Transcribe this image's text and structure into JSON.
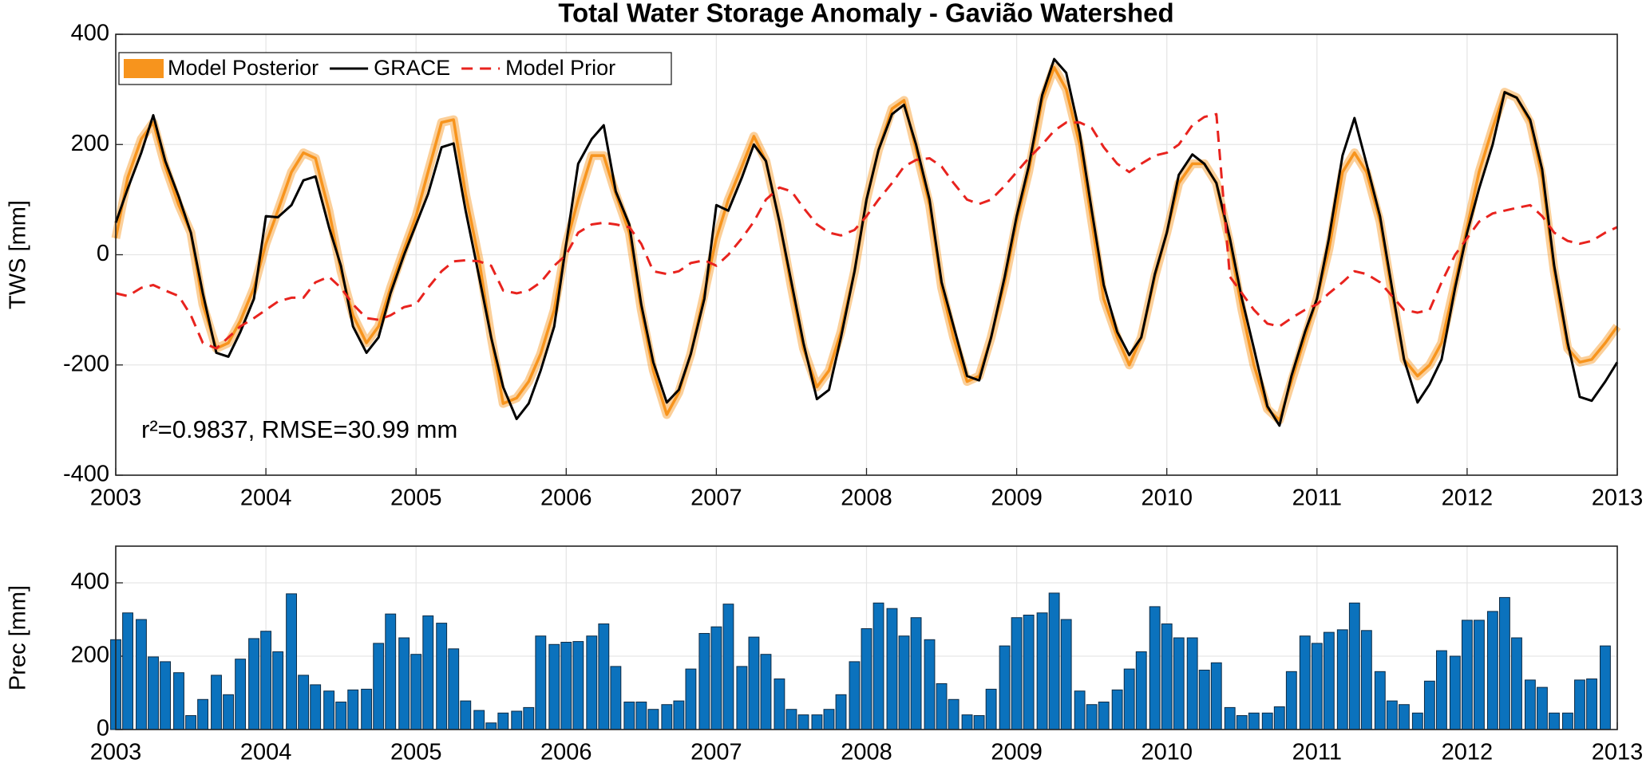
{
  "chart_data": [
    {
      "type": "line",
      "title": "Total Water Storage Anomaly - Gavião Watershed",
      "ylabel": "TWS [mm]",
      "annotation": "r²=0.9837, RMSE=30.99 mm",
      "x": [
        2003,
        2003.08,
        2003.17,
        2003.25,
        2003.33,
        2003.42,
        2003.5,
        2003.58,
        2003.67,
        2003.75,
        2003.83,
        2003.92,
        2004,
        2004.08,
        2004.17,
        2004.25,
        2004.33,
        2004.42,
        2004.5,
        2004.58,
        2004.67,
        2004.75,
        2004.83,
        2004.92,
        2005,
        2005.08,
        2005.17,
        2005.25,
        2005.33,
        2005.42,
        2005.5,
        2005.58,
        2005.67,
        2005.75,
        2005.83,
        2005.92,
        2006,
        2006.08,
        2006.17,
        2006.25,
        2006.33,
        2006.42,
        2006.5,
        2006.58,
        2006.67,
        2006.75,
        2006.83,
        2006.92,
        2007,
        2007.08,
        2007.17,
        2007.25,
        2007.33,
        2007.42,
        2007.5,
        2007.58,
        2007.67,
        2007.75,
        2007.83,
        2007.92,
        2008,
        2008.08,
        2008.17,
        2008.25,
        2008.33,
        2008.42,
        2008.5,
        2008.58,
        2008.67,
        2008.75,
        2008.83,
        2008.92,
        2009,
        2009.08,
        2009.17,
        2009.25,
        2009.33,
        2009.42,
        2009.5,
        2009.58,
        2009.67,
        2009.75,
        2009.83,
        2009.92,
        2010,
        2010.08,
        2010.17,
        2010.25,
        2010.33,
        2010.42,
        2010.5,
        2010.58,
        2010.67,
        2010.75,
        2010.83,
        2010.92,
        2011,
        2011.08,
        2011.17,
        2011.25,
        2011.33,
        2011.42,
        2011.5,
        2011.58,
        2011.67,
        2011.75,
        2011.83,
        2011.92,
        2012,
        2012.08,
        2012.17,
        2012.25,
        2012.33,
        2012.42,
        2012.5,
        2012.58,
        2012.67,
        2012.75,
        2012.83,
        2012.92,
        2013
      ],
      "series": [
        {
          "name": "Model Posterior",
          "color": "#f7941d",
          "style": "band",
          "values": [
            30,
            140,
            210,
            240,
            160,
            90,
            40,
            -90,
            -170,
            -160,
            -120,
            -60,
            20,
            80,
            150,
            185,
            175,
            80,
            -30,
            -110,
            -160,
            -130,
            -60,
            10,
            70,
            150,
            240,
            245,
            110,
            -10,
            -150,
            -270,
            -260,
            -230,
            -180,
            -100,
            20,
            100,
            180,
            180,
            110,
            40,
            -100,
            -210,
            -290,
            -250,
            -180,
            -70,
            30,
            100,
            160,
            215,
            170,
            60,
            -60,
            -170,
            -240,
            -210,
            -140,
            -30,
            100,
            190,
            265,
            280,
            190,
            90,
            -60,
            -150,
            -230,
            -220,
            -150,
            -50,
            60,
            150,
            280,
            340,
            300,
            200,
            60,
            -80,
            -150,
            -200,
            -150,
            -40,
            40,
            130,
            165,
            165,
            130,
            20,
            -100,
            -200,
            -280,
            -300,
            -230,
            -150,
            -80,
            10,
            150,
            185,
            150,
            60,
            -70,
            -190,
            -220,
            -200,
            -160,
            -50,
            50,
            150,
            230,
            295,
            285,
            240,
            140,
            -30,
            -170,
            -195,
            -190,
            -160,
            -130
          ]
        },
        {
          "name": "GRACE",
          "color": "#000000",
          "style": "solid",
          "values": [
            58,
            120,
            185,
            253,
            170,
            105,
            40,
            -70,
            -178,
            -185,
            -140,
            -80,
            70,
            68,
            90,
            135,
            142,
            50,
            -20,
            -130,
            -178,
            -150,
            -70,
            0,
            55,
            110,
            195,
            202,
            80,
            -40,
            -150,
            -240,
            -298,
            -270,
            -210,
            -130,
            20,
            165,
            210,
            235,
            115,
            55,
            -90,
            -195,
            -268,
            -245,
            -180,
            -80,
            90,
            80,
            140,
            200,
            170,
            60,
            -50,
            -160,
            -262,
            -245,
            -150,
            -30,
            100,
            190,
            255,
            272,
            200,
            100,
            -50,
            -130,
            -220,
            -228,
            -150,
            -40,
            70,
            160,
            290,
            355,
            330,
            220,
            80,
            -55,
            -140,
            -182,
            -150,
            -35,
            40,
            145,
            182,
            165,
            130,
            30,
            -80,
            -170,
            -275,
            -310,
            -220,
            -140,
            -80,
            30,
            180,
            248,
            165,
            70,
            -60,
            -190,
            -268,
            -235,
            -190,
            -60,
            40,
            120,
            200,
            295,
            285,
            245,
            155,
            -20,
            -160,
            -258,
            -265,
            -230,
            -195
          ]
        },
        {
          "name": "Model Prior",
          "color": "#e8231e",
          "style": "dashed",
          "values": [
            -70,
            -75,
            -60,
            -55,
            -65,
            -75,
            -110,
            -160,
            -170,
            -150,
            -130,
            -115,
            -100,
            -85,
            -78,
            -78,
            -50,
            -40,
            -60,
            -90,
            -115,
            -118,
            -110,
            -95,
            -90,
            -60,
            -30,
            -12,
            -10,
            -12,
            -20,
            -65,
            -70,
            -65,
            -50,
            -20,
            0,
            40,
            55,
            58,
            55,
            50,
            20,
            -30,
            -35,
            -30,
            -15,
            -10,
            -20,
            0,
            30,
            60,
            100,
            122,
            115,
            85,
            55,
            40,
            35,
            45,
            70,
            100,
            130,
            160,
            172,
            175,
            160,
            130,
            100,
            92,
            100,
            125,
            150,
            175,
            200,
            225,
            240,
            240,
            230,
            195,
            165,
            150,
            165,
            180,
            185,
            200,
            235,
            250,
            255,
            -40,
            -70,
            -100,
            -125,
            -130,
            -115,
            -100,
            -90,
            -70,
            -50,
            -30,
            -35,
            -50,
            -75,
            -100,
            -105,
            -100,
            -50,
            0,
            30,
            60,
            75,
            80,
            85,
            90,
            70,
            40,
            25,
            20,
            25,
            40,
            50
          ]
        }
      ],
      "xlim": [
        2003,
        2013
      ],
      "xticks": [
        2003,
        2004,
        2005,
        2006,
        2007,
        2008,
        2009,
        2010,
        2011,
        2012,
        2013
      ],
      "ylim": [
        -400,
        400
      ],
      "yticks": [
        400,
        200,
        0,
        -200,
        -400
      ],
      "grid": true,
      "legend": "upper left"
    },
    {
      "type": "bar",
      "ylabel": "Prec [mm]",
      "color": "#0b72bd",
      "x": [
        2003,
        2003.08,
        2003.17,
        2003.25,
        2003.33,
        2003.42,
        2003.5,
        2003.58,
        2003.67,
        2003.75,
        2003.83,
        2003.92,
        2004,
        2004.08,
        2004.17,
        2004.25,
        2004.33,
        2004.42,
        2004.5,
        2004.58,
        2004.67,
        2004.75,
        2004.83,
        2004.92,
        2005,
        2005.08,
        2005.17,
        2005.25,
        2005.33,
        2005.42,
        2005.5,
        2005.58,
        2005.67,
        2005.75,
        2005.83,
        2005.92,
        2006,
        2006.08,
        2006.17,
        2006.25,
        2006.33,
        2006.42,
        2006.5,
        2006.58,
        2006.67,
        2006.75,
        2006.83,
        2006.92,
        2007,
        2007.08,
        2007.17,
        2007.25,
        2007.33,
        2007.42,
        2007.5,
        2007.58,
        2007.67,
        2007.75,
        2007.83,
        2007.92,
        2008,
        2008.08,
        2008.17,
        2008.25,
        2008.33,
        2008.42,
        2008.5,
        2008.58,
        2008.67,
        2008.75,
        2008.83,
        2008.92,
        2009,
        2009.08,
        2009.17,
        2009.25,
        2009.33,
        2009.42,
        2009.5,
        2009.58,
        2009.67,
        2009.75,
        2009.83,
        2009.92,
        2010,
        2010.08,
        2010.17,
        2010.25,
        2010.33,
        2010.42,
        2010.5,
        2010.58,
        2010.67,
        2010.75,
        2010.83,
        2010.92,
        2011,
        2011.08,
        2011.17,
        2011.25,
        2011.33,
        2011.42,
        2011.5,
        2011.58,
        2011.67,
        2011.75,
        2011.83,
        2011.92,
        2012,
        2012.08,
        2012.17,
        2012.25,
        2012.33,
        2012.42,
        2012.5,
        2012.58,
        2012.67,
        2012.75,
        2012.83,
        2012.92
      ],
      "values": [
        245,
        318,
        300,
        198,
        185,
        155,
        38,
        82,
        148,
        95,
        192,
        248,
        268,
        212,
        370,
        148,
        122,
        105,
        75,
        108,
        110,
        235,
        315,
        250,
        205,
        310,
        290,
        220,
        78,
        52,
        18,
        45,
        50,
        60,
        255,
        232,
        238,
        240,
        255,
        288,
        172,
        75,
        75,
        55,
        68,
        78,
        165,
        262,
        280,
        342,
        172,
        252,
        205,
        138,
        55,
        40,
        40,
        55,
        95,
        185,
        275,
        345,
        330,
        255,
        305,
        245,
        125,
        82,
        40,
        38,
        110,
        228,
        305,
        312,
        318,
        372,
        300,
        105,
        68,
        75,
        108,
        165,
        212,
        335,
        288,
        250,
        250,
        162,
        182,
        60,
        38,
        45,
        45,
        62,
        158,
        255,
        235,
        265,
        272,
        345,
        270,
        158,
        78,
        68,
        45,
        132,
        215,
        200,
        298,
        298,
        322,
        360,
        250,
        135,
        115,
        45,
        45,
        135,
        138,
        228
      ],
      "xlim": [
        2003,
        2013
      ],
      "xticks": [
        2003,
        2004,
        2005,
        2006,
        2007,
        2008,
        2009,
        2010,
        2011,
        2012,
        2013
      ],
      "ylim": [
        0,
        500
      ],
      "yticks": [
        0,
        200,
        400
      ],
      "grid": true
    }
  ]
}
